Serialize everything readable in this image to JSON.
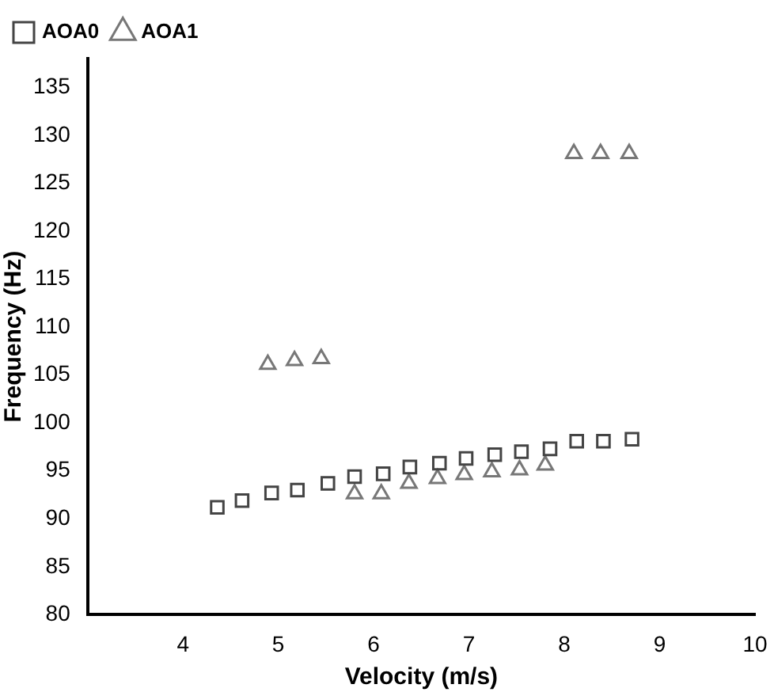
{
  "chart_data": {
    "type": "scatter",
    "xlabel": "Velocity (m/s)",
    "ylabel": "Frequency (Hz)",
    "xlim": [
      3,
      10
    ],
    "xticks": [
      4,
      5,
      6,
      7,
      8,
      9,
      10
    ],
    "ylim": [
      80,
      138
    ],
    "yticks": [
      80,
      85,
      90,
      95,
      100,
      105,
      110,
      115,
      120,
      125,
      130,
      135
    ],
    "grid": false,
    "legend": "top left",
    "series": [
      {
        "name": "AOA0",
        "color": "#444444",
        "marker": "square",
        "x": [
          4.36,
          4.62,
          4.93,
          5.2,
          5.52,
          5.8,
          6.1,
          6.38,
          6.69,
          6.97,
          7.27,
          7.55,
          7.85,
          8.13,
          8.41,
          8.71
        ],
        "values": [
          91.2,
          91.9,
          92.7,
          93.0,
          93.7,
          94.4,
          94.7,
          95.4,
          95.8,
          96.3,
          96.7,
          97.0,
          97.3,
          98.1,
          98.1,
          98.3
        ]
      },
      {
        "name": "AOA1",
        "color": "#777777",
        "marker": "triangle",
        "x": [
          4.89,
          5.17,
          5.45,
          5.8,
          6.08,
          6.37,
          6.67,
          6.95,
          7.24,
          7.53,
          7.8,
          8.1,
          8.38,
          8.68
        ],
        "values": [
          106.1,
          106.5,
          106.7,
          92.6,
          92.6,
          93.7,
          94.2,
          94.6,
          94.9,
          95.1,
          95.6,
          128.1,
          128.1,
          128.1
        ]
      }
    ]
  }
}
